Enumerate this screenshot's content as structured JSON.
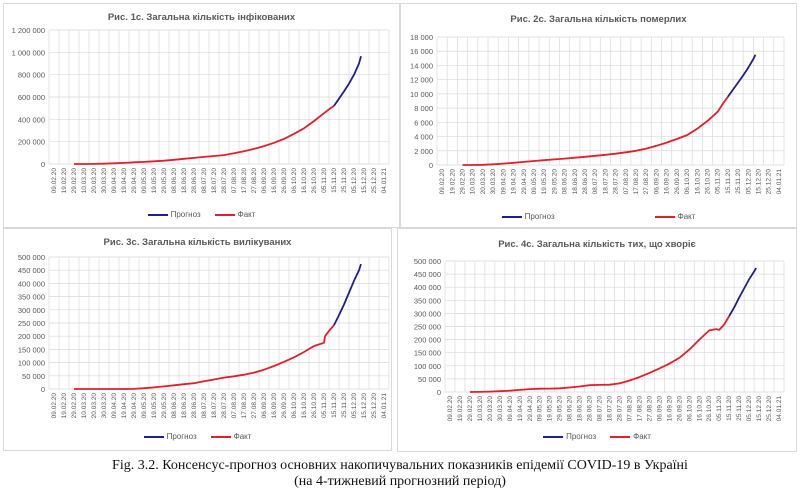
{
  "caption": {
    "line1": "Fig. 3.2. Консенсус-прогноз основних накопичувальних показників епідемії COVID-19 в Україні",
    "line2": "(на 4-тижневий прогнозний період)"
  },
  "legend": {
    "forecast": "Прогноз",
    "fact": "Факт"
  },
  "colors": {
    "forecast": "#1f1f8f",
    "fact": "#e0202a",
    "grid": "#d9d9d9",
    "text": "#595959"
  },
  "chart_data": [
    {
      "type": "line",
      "title": "Рис. 1с. Загальна кількість інфікованих",
      "xlabel": "",
      "ylabel": "",
      "ylim": [
        0,
        1200000
      ],
      "yticks": [
        "0",
        "200 000",
        "400 000",
        "600 000",
        "800 000",
        "1 000 000",
        "1 200 000"
      ],
      "categories": [
        "09.02.20",
        "19.02.20",
        "29.02.20",
        "10.03.20",
        "20.03.20",
        "30.03.20",
        "09.04.20",
        "19.04.20",
        "29.04.20",
        "09.05.20",
        "19.05.20",
        "29.05.20",
        "08.06.20",
        "18.06.20",
        "28.06.20",
        "08.07.20",
        "18.07.20",
        "28.07.20",
        "07.08.20",
        "17.08.20",
        "27.08.20",
        "06.09.20",
        "16.09.20",
        "26.09.20",
        "06.10.20",
        "16.10.20",
        "26.10.20",
        "05.11.20",
        "15.11.20",
        "25.11.20",
        "05.12.20",
        "15.12.20",
        "25.12.20",
        "04.01.21"
      ],
      "grid": true,
      "legend_position": "bottom",
      "series": [
        {
          "name": "Факт",
          "x": [
            2,
            3,
            4,
            5,
            6,
            7,
            8,
            9,
            10,
            11,
            12,
            13,
            14,
            15,
            16,
            17,
            18,
            19,
            20,
            21,
            22,
            23,
            24,
            25,
            26,
            27,
            27.5,
            28
          ],
          "values": [
            0,
            100,
            1000,
            3000,
            6000,
            10000,
            15000,
            19000,
            24000,
            30000,
            38000,
            47000,
            55000,
            64000,
            72000,
            80000,
            96000,
            115000,
            135000,
            160000,
            190000,
            225000,
            270000,
            320000,
            385000,
            455000,
            490000,
            520000
          ]
        },
        {
          "name": "Прогноз",
          "x": [
            28,
            28.5,
            29,
            29.5,
            30,
            30.5,
            30.7
          ],
          "values": [
            520000,
            585000,
            650000,
            720000,
            800000,
            900000,
            965000
          ]
        }
      ]
    },
    {
      "type": "line",
      "title": "Рис. 2с. Загальна кількість померлих",
      "xlabel": "",
      "ylabel": "",
      "ylim": [
        0,
        18000
      ],
      "yticks": [
        "0",
        "2 000",
        "4 000",
        "6 000",
        "8 000",
        "10 000",
        "12 000",
        "14 000",
        "16 000",
        "18 000"
      ],
      "categories": [
        "09.02.20",
        "19.02.20",
        "29.02.20",
        "10.03.20",
        "20.03.20",
        "30.03.20",
        "09.04.20",
        "19.04.20",
        "29.04.20",
        "09.05.20",
        "19.05.20",
        "29.05.20",
        "08.06.20",
        "18.06.20",
        "28.06.20",
        "08.07.20",
        "18.07.20",
        "28.07.20",
        "07.08.20",
        "17.08.20",
        "27.08.20",
        "06.09.20",
        "16.09.20",
        "26.09.20",
        "06.10.20",
        "16.10.20",
        "26.10.20",
        "05.11.20",
        "15.11.20",
        "25.11.20",
        "05.12.20",
        "15.12.20",
        "25.12.20",
        "04.01.21"
      ],
      "grid": true,
      "legend_position": "bottom",
      "series": [
        {
          "name": "Факт",
          "x": [
            2,
            3,
            4,
            5,
            6,
            7,
            8,
            9,
            10,
            11,
            12,
            13,
            14,
            15,
            16,
            17,
            18,
            19,
            20,
            21,
            22,
            23,
            24,
            25,
            26,
            27,
            27.5,
            28
          ],
          "values": [
            0,
            5,
            30,
            100,
            200,
            310,
            430,
            560,
            680,
            790,
            900,
            1030,
            1150,
            1290,
            1430,
            1590,
            1780,
            2000,
            2300,
            2700,
            3150,
            3650,
            4200,
            5100,
            6200,
            7500,
            8600,
            9600
          ]
        },
        {
          "name": "Прогноз",
          "x": [
            28,
            28.5,
            29,
            29.5,
            30,
            30.5,
            30.7
          ],
          "values": [
            9600,
            10600,
            11600,
            12600,
            13700,
            14900,
            15500
          ]
        }
      ]
    },
    {
      "type": "line",
      "title": "Рис. 3с. Загальна кількість вилікуваних",
      "xlabel": "",
      "ylabel": "",
      "ylim": [
        0,
        500000
      ],
      "yticks": [
        "0",
        "50 000",
        "100 000",
        "150 000",
        "200 000",
        "250 000",
        "300 000",
        "350 000",
        "400 000",
        "450 000",
        "500 000"
      ],
      "categories": [
        "09.02.20",
        "19.02.20",
        "29.02.20",
        "10.03.20",
        "20.03.20",
        "30.03.20",
        "09.04.20",
        "19.04.20",
        "29.04.20",
        "09.05.20",
        "19.05.20",
        "29.05.20",
        "08.06.20",
        "18.06.20",
        "28.06.20",
        "08.07.20",
        "18.07.20",
        "28.07.20",
        "07.08.20",
        "17.08.20",
        "27.08.20",
        "06.09.20",
        "16.09.20",
        "26.09.20",
        "06.10.20",
        "16.10.20",
        "26.10.20",
        "05.11.20",
        "15.11.20",
        "25.11.20",
        "05.12.20",
        "15.12.20",
        "25.12.20",
        "04.01.21"
      ],
      "grid": true,
      "legend_position": "bottom",
      "series": [
        {
          "name": "Факт",
          "x": [
            2,
            3,
            4,
            5,
            6,
            7,
            8,
            9,
            10,
            11,
            12,
            13,
            14,
            15,
            16,
            17,
            18,
            19,
            20,
            21,
            22,
            23,
            24,
            25,
            26,
            27,
            27.1,
            27.5,
            28
          ],
          "values": [
            0,
            0,
            0,
            0,
            0,
            100,
            500,
            3000,
            6000,
            10000,
            14000,
            18000,
            22000,
            29000,
            36000,
            43000,
            48000,
            54000,
            62000,
            73000,
            87000,
            103000,
            120000,
            140000,
            163000,
            175000,
            200000,
            220000,
            242000
          ]
        },
        {
          "name": "Прогноз",
          "x": [
            28,
            28.5,
            29,
            29.5,
            30,
            30.5,
            30.7
          ],
          "values": [
            242000,
            280000,
            320000,
            365000,
            410000,
            450000,
            473000
          ]
        }
      ]
    },
    {
      "type": "line",
      "title": "Рис. 4с. Загальна кількість тих, що хворіє",
      "xlabel": "",
      "ylabel": "",
      "ylim": [
        0,
        500000
      ],
      "yticks": [
        "0",
        "50 000",
        "100 000",
        "150 000",
        "200 000",
        "250 000",
        "300 000",
        "350 000",
        "400 000",
        "450 000",
        "500 000"
      ],
      "categories": [
        "09.02.20",
        "19.02.20",
        "29.02.20",
        "10.03.20",
        "20.03.20",
        "30.03.20",
        "09.04.20",
        "19.04.20",
        "29.04.20",
        "09.05.20",
        "19.05.20",
        "29.05.20",
        "08.06.20",
        "18.06.20",
        "28.06.20",
        "08.07.20",
        "18.07.20",
        "28.07.20",
        "07.08.20",
        "17.08.20",
        "27.08.20",
        "06.09.20",
        "16.09.20",
        "26.09.20",
        "06.10.20",
        "16.10.20",
        "26.10.20",
        "05.11.20",
        "15.11.20",
        "25.11.20",
        "05.12.20",
        "15.12.20",
        "25.12.20",
        "04.01.21"
      ],
      "grid": true,
      "legend_position": "bottom",
      "series": [
        {
          "name": "Факт",
          "x": [
            2,
            3,
            4,
            5,
            6,
            7,
            8,
            9,
            10,
            11,
            12,
            13,
            14,
            15,
            16,
            17,
            18,
            19,
            20,
            21,
            22,
            23,
            24,
            25,
            26,
            26.7,
            27,
            27.5,
            28
          ],
          "values": [
            0,
            500,
            1500,
            3000,
            5000,
            8000,
            11000,
            12500,
            13000,
            14000,
            17000,
            21000,
            26000,
            27000,
            28000,
            33000,
            44000,
            57000,
            73000,
            90000,
            108000,
            130000,
            162000,
            200000,
            235000,
            240000,
            237000,
            258000,
            290000
          ]
        },
        {
          "name": "Прогноз",
          "x": [
            28,
            28.5,
            29,
            29.5,
            30,
            30.5,
            30.7
          ],
          "values": [
            290000,
            322000,
            360000,
            395000,
            430000,
            460000,
            473000
          ]
        }
      ]
    }
  ]
}
